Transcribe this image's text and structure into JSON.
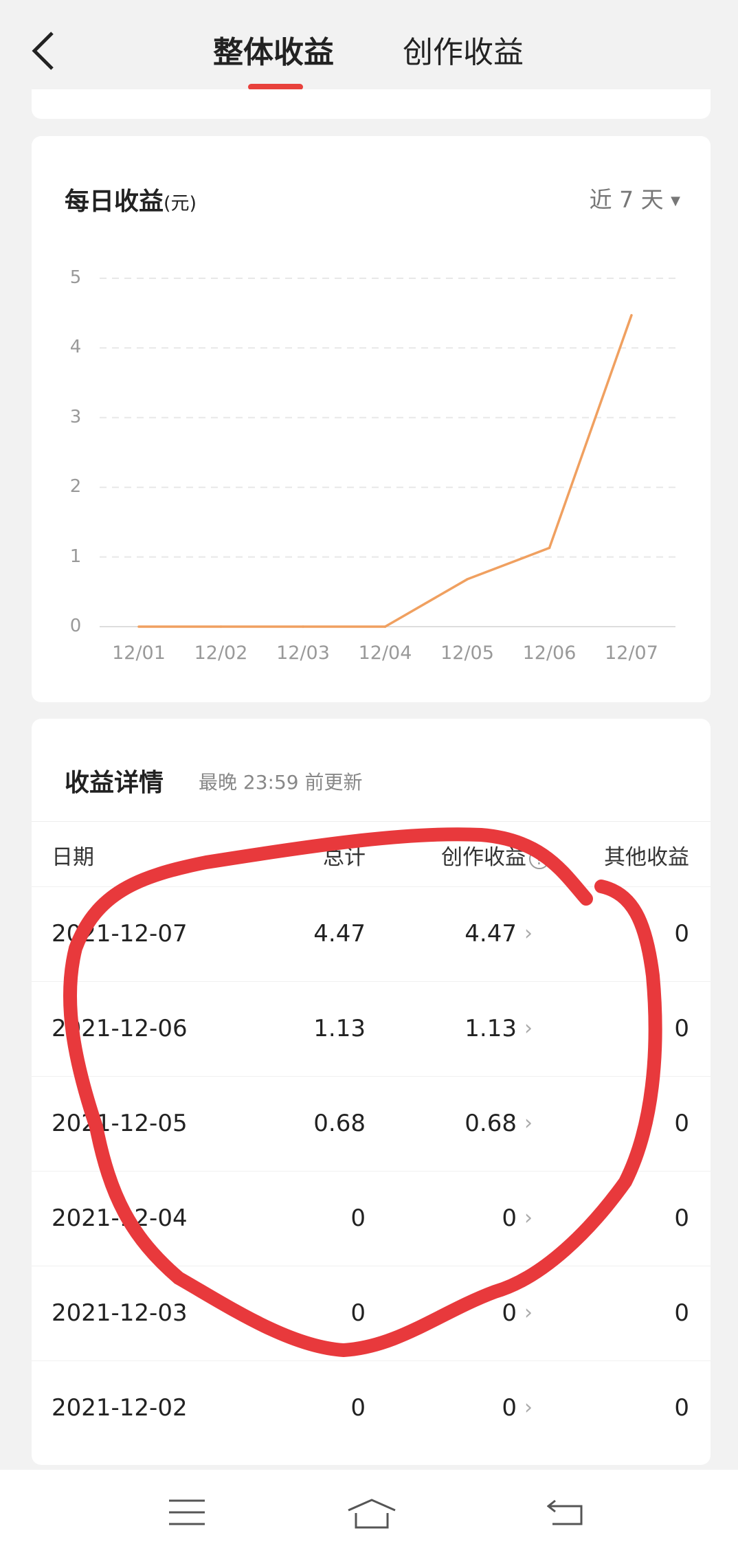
{
  "header": {
    "back_icon": "chevron-left-icon",
    "tabs": [
      {
        "label": "整体收益",
        "active": true
      },
      {
        "label": "创作收益",
        "active": false
      }
    ],
    "accent": "#e8413c"
  },
  "chart_card": {
    "title": "每日收益",
    "unit": "(元)",
    "range_label": "近 7 天",
    "dropdown_icon": "triangle-down-icon"
  },
  "chart_data": {
    "type": "line",
    "categories": [
      "12/01",
      "12/02",
      "12/03",
      "12/04",
      "12/05",
      "12/06",
      "12/07"
    ],
    "values": [
      0,
      0,
      0,
      0,
      0.68,
      1.13,
      4.47
    ],
    "yticks": [
      "0",
      "1",
      "2",
      "3",
      "4",
      "5"
    ],
    "ylim": [
      0,
      5
    ],
    "grid": true,
    "line_color": "#f0a060"
  },
  "details": {
    "title": "收益详情",
    "subtitle": "最晚 23:59 前更新",
    "columns": [
      "日期",
      "总计",
      "创作收益",
      "其他收益"
    ],
    "help_icon": "question-circle-icon",
    "rows": [
      {
        "date": "2021-12-07",
        "total": "4.47",
        "creation": "4.47",
        "other": "0"
      },
      {
        "date": "2021-12-06",
        "total": "1.13",
        "creation": "1.13",
        "other": "0"
      },
      {
        "date": "2021-12-05",
        "total": "0.68",
        "creation": "0.68",
        "other": "0"
      },
      {
        "date": "2021-12-04",
        "total": "0",
        "creation": "0",
        "other": "0"
      },
      {
        "date": "2021-12-03",
        "total": "0",
        "creation": "0",
        "other": "0"
      },
      {
        "date": "2021-12-02",
        "total": "0",
        "creation": "0",
        "other": "0"
      }
    ]
  },
  "nav": {
    "icons": [
      "menu-icon",
      "home-icon",
      "back-icon"
    ]
  },
  "annotation_color": "#e8393c"
}
